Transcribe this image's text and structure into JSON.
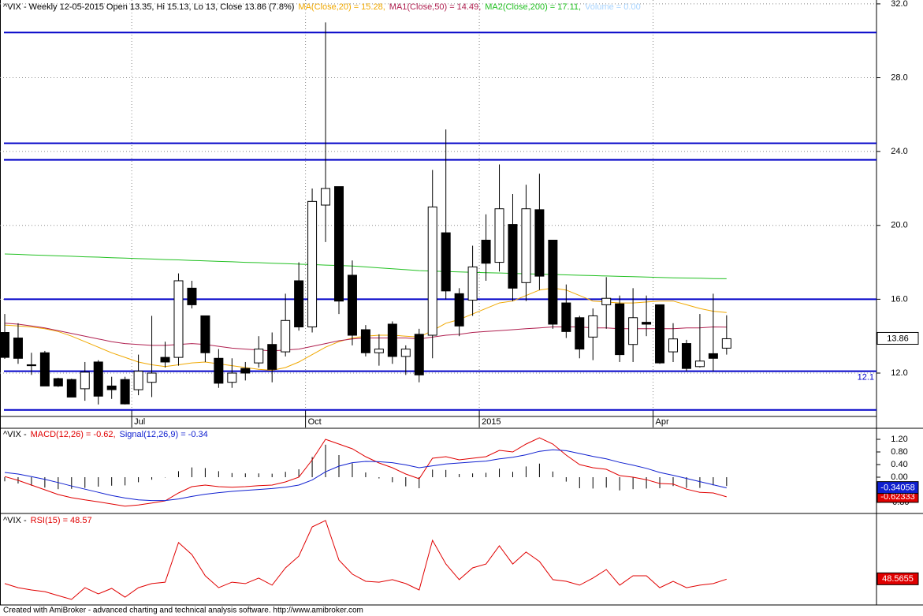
{
  "footer": "Created with AmiBroker - advanced charting and technical analysis software. http://www.amibroker.com",
  "chart_data": [
    {
      "type": "candlestick",
      "title": "^VIX - Weekly 12-05-2015 Open 13.35, Hi 15.13, Lo 13, Close 13.86 (7.8%)",
      "categories": [
        null,
        null,
        null,
        null,
        null,
        null,
        null,
        null,
        null,
        null,
        "Jul",
        null,
        null,
        null,
        null,
        null,
        null,
        null,
        null,
        null,
        null,
        null,
        null,
        "Oct",
        null,
        null,
        null,
        null,
        null,
        null,
        null,
        null,
        null,
        null,
        null,
        null,
        "2015",
        null,
        null,
        null,
        null,
        null,
        null,
        null,
        null,
        null,
        null,
        null,
        null,
        "Apr",
        null,
        null,
        null,
        null,
        null
      ],
      "open": [
        14.2,
        13.9,
        12.45,
        13.1,
        11.7,
        11.65,
        11.15,
        12.6,
        11.3,
        11.65,
        11.1,
        11.5,
        12.85,
        12.85,
        16.6,
        15.1,
        12.8,
        11.5,
        12.25,
        12.55,
        13.55,
        13.15,
        17.0,
        14.5,
        21.1,
        22.1,
        17.3,
        14.35,
        13.1,
        14.65,
        12.9,
        14.1,
        14.05,
        19.6,
        16.3,
        15.95,
        19.2,
        18.0,
        20.05,
        16.9,
        20.85,
        19.2,
        15.8,
        15.0,
        13.95,
        15.7,
        15.75,
        13.55,
        14.75,
        15.7,
        13.15,
        13.6,
        12.35,
        13.05,
        13.35
      ],
      "high": [
        15.2,
        14.7,
        13.1,
        13.2,
        11.75,
        11.7,
        12.6,
        12.7,
        11.8,
        11.8,
        13.0,
        15.1,
        13.7,
        17.4,
        17.0,
        15.1,
        13.3,
        12.8,
        12.6,
        14.0,
        14.2,
        16.3,
        18.0,
        22.0,
        31.0,
        22.1,
        18.1,
        14.6,
        14.1,
        14.8,
        13.5,
        14.4,
        23.0,
        25.2,
        16.6,
        18.9,
        20.6,
        23.3,
        21.7,
        22.2,
        22.8,
        19.2,
        16.8,
        15.1,
        15.5,
        17.2,
        16.2,
        16.6,
        16.2,
        15.7,
        14.7,
        13.8,
        15.2,
        16.3,
        15.13
      ],
      "low": [
        12.77,
        12.5,
        11.9,
        11.3,
        11.25,
        10.7,
        10.5,
        10.3,
        10.6,
        10.3,
        10.8,
        10.7,
        12.3,
        12.4,
        15.5,
        12.6,
        11.2,
        11.2,
        11.6,
        12.3,
        11.5,
        12.9,
        14.3,
        14.2,
        19.1,
        15.2,
        13.5,
        12.9,
        12.4,
        12.5,
        11.9,
        11.5,
        12.8,
        16.0,
        14.0,
        15.1,
        17.0,
        17.5,
        15.9,
        15.9,
        16.5,
        14.4,
        13.9,
        12.8,
        12.7,
        14.4,
        12.6,
        12.6,
        14.0,
        12.5,
        12.6,
        12.1,
        12.3,
        12.1,
        13
      ],
      "close": [
        12.85,
        12.8,
        12.4,
        11.3,
        11.3,
        10.7,
        12.05,
        10.75,
        11.1,
        10.33,
        12.1,
        12.0,
        12.6,
        17.0,
        15.7,
        13.1,
        11.45,
        12.0,
        12.0,
        13.3,
        12.2,
        14.85,
        14.5,
        21.3,
        22.0,
        15.9,
        14.05,
        13.1,
        13.3,
        12.9,
        13.3,
        11.9,
        21.0,
        16.45,
        14.55,
        17.75,
        17.95,
        20.9,
        16.6,
        20.9,
        17.25,
        14.65,
        14.25,
        13.3,
        15.1,
        16.05,
        13.0,
        15.0,
        14.65,
        12.55,
        13.85,
        12.25,
        12.65,
        12.8,
        13.86
      ],
      "up_color": "#ffffff",
      "down_color": "#000000",
      "series": [
        {
          "name": "MA(Close,20) = 15.28,",
          "color": "#f0a800",
          "values": [
            14.6,
            14.55,
            14.5,
            14.4,
            14.25,
            14.0,
            13.7,
            13.4,
            13.1,
            12.85,
            12.6,
            12.45,
            12.35,
            12.45,
            12.55,
            12.6,
            12.5,
            12.4,
            12.3,
            12.2,
            12.15,
            12.3,
            12.6,
            13.0,
            13.4,
            13.7,
            13.9,
            14.0,
            14.05,
            14.05,
            14.0,
            13.95,
            14.3,
            14.7,
            14.9,
            15.2,
            15.5,
            15.8,
            15.9,
            16.2,
            16.5,
            16.6,
            16.5,
            16.2,
            15.9,
            15.85,
            15.8,
            15.8,
            15.85,
            15.9,
            15.9,
            15.7,
            15.5,
            15.35,
            15.28
          ]
        },
        {
          "name": "MA1(Close,50) = 14.49,",
          "color": "#b02050",
          "values": [
            14.7,
            14.65,
            14.55,
            14.45,
            14.3,
            14.15,
            14.0,
            13.85,
            13.7,
            13.6,
            13.55,
            13.5,
            13.5,
            13.55,
            13.6,
            13.55,
            13.45,
            13.35,
            13.3,
            13.25,
            13.2,
            13.25,
            13.3,
            13.45,
            13.6,
            13.75,
            13.85,
            13.9,
            13.9,
            13.9,
            13.9,
            13.85,
            13.95,
            14.05,
            14.1,
            14.2,
            14.25,
            14.3,
            14.35,
            14.4,
            14.45,
            14.5,
            14.5,
            14.5,
            14.45,
            14.45,
            14.4,
            14.4,
            14.4,
            14.4,
            14.4,
            14.45,
            14.45,
            14.5,
            14.49
          ]
        },
        {
          "name": "MA2(Close,200) = 17.11,",
          "color": "#22c022",
          "values": [
            18.45,
            18.43,
            18.4,
            18.38,
            18.35,
            18.33,
            18.3,
            18.28,
            18.25,
            18.23,
            18.2,
            18.18,
            18.15,
            18.13,
            18.1,
            18.08,
            18.05,
            18.03,
            18.0,
            17.98,
            17.95,
            17.93,
            17.9,
            17.88,
            17.85,
            17.83,
            17.8,
            17.75,
            17.7,
            17.65,
            17.6,
            17.55,
            17.52,
            17.5,
            17.48,
            17.46,
            17.44,
            17.42,
            17.4,
            17.38,
            17.36,
            17.34,
            17.32,
            17.3,
            17.28,
            17.26,
            17.24,
            17.22,
            17.2,
            17.18,
            17.16,
            17.15,
            17.14,
            17.12,
            17.11
          ]
        }
      ],
      "volume_label": "Volume = 0.00",
      "volume_color": "#a8d4ff",
      "levels": [
        30.45,
        24.45,
        23.55,
        16,
        {
          "value": 12.1,
          "label": "12.1"
        },
        10
      ],
      "level_color": "#0000c8",
      "ylim": [
        9.65,
        32.21
      ],
      "yticks": [
        {
          "value": 12,
          "label": "12.0"
        },
        {
          "value": 16,
          "label": "16.0"
        },
        {
          "value": 20,
          "label": "20.0"
        },
        {
          "value": 24,
          "label": "24.0"
        },
        {
          "value": 28,
          "label": "28.0"
        },
        {
          "value": 32,
          "label": "32.0"
        }
      ],
      "grid": true
    },
    {
      "type": "macd",
      "title": "^VIX -",
      "series": [
        {
          "name": "MACD(12,26) = -0.62,",
          "color": "#e00000",
          "values": [
            0.02,
            -0.1,
            -0.25,
            -0.4,
            -0.55,
            -0.65,
            -0.72,
            -0.78,
            -0.85,
            -0.92,
            -0.88,
            -0.82,
            -0.75,
            -0.5,
            -0.3,
            -0.25,
            -0.3,
            -0.32,
            -0.3,
            -0.27,
            -0.25,
            -0.15,
            0.0,
            0.55,
            1.2,
            1.05,
            0.9,
            0.65,
            0.45,
            0.3,
            0.1,
            -0.05,
            0.6,
            0.65,
            0.55,
            0.6,
            0.65,
            0.85,
            0.8,
            1.05,
            1.25,
            1.05,
            0.7,
            0.4,
            0.3,
            0.25,
            0.05,
            0.0,
            -0.08,
            -0.2,
            -0.22,
            -0.38,
            -0.48,
            -0.5,
            -0.62333
          ]
        },
        {
          "name": "Signal(12,26,9) = -0.34",
          "color": "#1020d0",
          "values": [
            0.15,
            0.1,
            0.02,
            -0.07,
            -0.17,
            -0.28,
            -0.38,
            -0.48,
            -0.58,
            -0.66,
            -0.72,
            -0.74,
            -0.74,
            -0.69,
            -0.61,
            -0.54,
            -0.49,
            -0.45,
            -0.42,
            -0.39,
            -0.36,
            -0.32,
            -0.25,
            -0.09,
            0.17,
            0.35,
            0.46,
            0.5,
            0.49,
            0.46,
            0.39,
            0.3,
            0.36,
            0.42,
            0.45,
            0.48,
            0.51,
            0.58,
            0.63,
            0.71,
            0.82,
            0.87,
            0.84,
            0.75,
            0.66,
            0.58,
            0.47,
            0.38,
            0.28,
            0.15,
            0.06,
            -0.04,
            -0.14,
            -0.24,
            -0.34058
          ]
        }
      ],
      "histogram": {
        "color": "#000000",
        "values": [
          -0.13,
          -0.2,
          -0.27,
          -0.33,
          -0.38,
          -0.37,
          -0.34,
          -0.3,
          -0.27,
          -0.26,
          -0.16,
          -0.08,
          -0.01,
          0.19,
          0.31,
          0.29,
          0.19,
          0.13,
          0.12,
          0.12,
          0.11,
          0.17,
          0.25,
          0.64,
          1.03,
          0.7,
          0.44,
          0.15,
          -0.04,
          -0.16,
          -0.29,
          -0.35,
          0.24,
          0.23,
          0.1,
          0.12,
          0.14,
          0.27,
          0.17,
          0.34,
          0.43,
          0.18,
          -0.14,
          -0.35,
          -0.36,
          -0.33,
          -0.42,
          -0.38,
          -0.36,
          -0.35,
          -0.28,
          -0.34,
          -0.34,
          -0.26,
          -0.28
        ]
      },
      "ylim": [
        -1.125,
        1.5
      ],
      "yticks": [
        {
          "value": 1.2,
          "label": "1.20"
        },
        {
          "value": 0.8,
          "label": "0.80"
        },
        {
          "value": 0.4,
          "label": "0.40"
        },
        {
          "value": 0,
          "label": "0.00"
        },
        {
          "value": -0.4,
          "label": "-0.40"
        },
        {
          "value": -0.8,
          "label": "-0.80"
        }
      ]
    },
    {
      "type": "line",
      "title": "^VIX -",
      "series": [
        {
          "name": "RSI(15) = 48.57",
          "color": "#e00000",
          "values": [
            46.1,
            43.8,
            42.5,
            41.6,
            39.4,
            37.2,
            43.8,
            40.3,
            43.4,
            38.5,
            43.8,
            46.1,
            46.9,
            69.1,
            62.4,
            50.5,
            43.8,
            46.9,
            46.1,
            49.2,
            45.2,
            54.9,
            61.5,
            77.9,
            81.5,
            59.3,
            51.4,
            47.4,
            46.9,
            48.3,
            46.1,
            42.5,
            70.4,
            57.1,
            48.3,
            54.9,
            57.1,
            67.3,
            57.1,
            63.8,
            58.5,
            48.3,
            47.4,
            45.2,
            49.2,
            54.0,
            45.2,
            50.5,
            50.5,
            43.8,
            47.4,
            43.8,
            45.2,
            46.1,
            48.5655
          ]
        }
      ],
      "ylim": [
        35,
        85
      ]
    }
  ]
}
